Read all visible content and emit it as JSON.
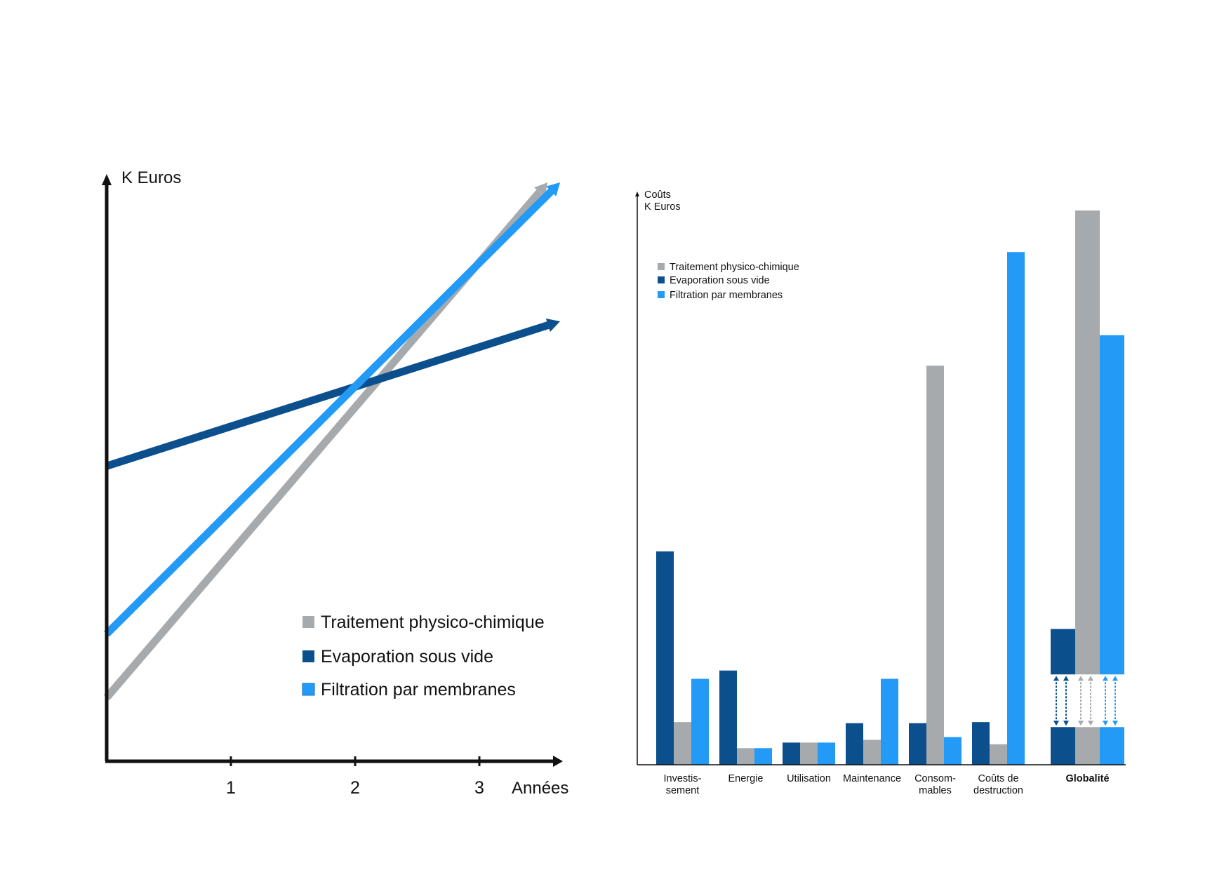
{
  "colors": {
    "gray": "#A7AAAD",
    "dark_blue": "#0B4F8C",
    "light_blue": "#229AF6",
    "axis": "#111111"
  },
  "chart_data": [
    {
      "type": "line",
      "title": "",
      "ylabel": "K Euros",
      "xlabel": "Années",
      "x_ticks": [
        "1",
        "2",
        "3"
      ],
      "xlim": [
        0,
        3.65
      ],
      "ylim": [
        0,
        100
      ],
      "legend": [
        "Traitement physico-chimique",
        "Evaporation sous vide",
        "Filtration par membranes"
      ],
      "series": [
        {
          "name": "Traitement physico-chimique",
          "color_key": "gray",
          "x": [
            0,
            3.55
          ],
          "y": [
            11,
            100
          ]
        },
        {
          "name": "Evaporation sous vide",
          "color_key": "dark_blue",
          "x": [
            0,
            3.65
          ],
          "y": [
            51,
            76
          ]
        },
        {
          "name": "Filtration par membranes",
          "color_key": "light_blue",
          "x": [
            0,
            3.65
          ],
          "y": [
            22,
            100
          ]
        }
      ]
    },
    {
      "type": "bar",
      "ylabel_lines": [
        "Coûts",
        "K Euros"
      ],
      "ylim": [
        0,
        100
      ],
      "legend": [
        "Traitement physico-chimique",
        "Evaporation sous vide",
        "Filtration par membranes"
      ],
      "categories": [
        [
          "Investis-",
          "sement"
        ],
        [
          "Energie"
        ],
        [
          "Utilisation"
        ],
        [
          "Maintenance"
        ],
        [
          "Consom-",
          "mables"
        ],
        [
          "Coûts de",
          "destruction"
        ]
      ],
      "series": [
        {
          "name": "Evaporation sous vide",
          "color_key": "dark_blue",
          "values": [
            38.5,
            17,
            4,
            7.5,
            7.5,
            7.7
          ]
        },
        {
          "name": "Traitement physico-chimique",
          "color_key": "gray",
          "values": [
            7.7,
            3,
            4,
            4.5,
            72,
            3.7
          ]
        },
        {
          "name": "Filtration par membranes",
          "color_key": "light_blue",
          "values": [
            15.5,
            3,
            4,
            15.5,
            5,
            92.5
          ]
        }
      ],
      "total": {
        "label": "Globalité",
        "series": [
          {
            "name": "Evaporation sous vide",
            "color_key": "dark_blue",
            "base": 6.8,
            "upper_start": 16.3,
            "upper_end": 24.5
          },
          {
            "name": "Traitement physico-chimique",
            "color_key": "gray",
            "base": 6.8,
            "upper_start": 16.3,
            "upper_end": 100
          },
          {
            "name": "Filtration par membranes",
            "color_key": "light_blue",
            "base": 6.8,
            "upper_start": 16.3,
            "upper_end": 77.5
          }
        ]
      }
    }
  ]
}
